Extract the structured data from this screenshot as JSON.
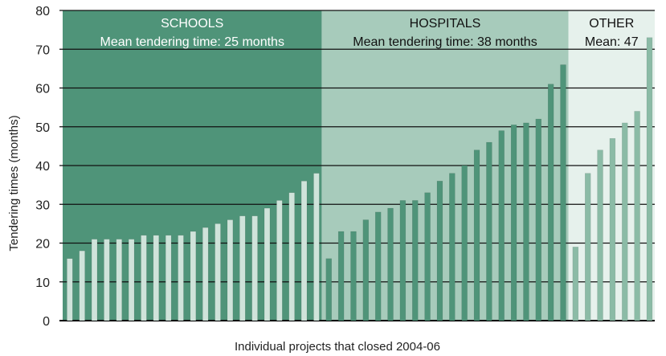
{
  "chart_data": {
    "type": "bar",
    "ylabel": "Tendering times (months)",
    "xlabel": "Individual projects that closed 2004-06",
    "ylim": [
      0,
      80
    ],
    "yticks": [
      0,
      10,
      20,
      30,
      40,
      50,
      60,
      70,
      80
    ],
    "grid": true,
    "groups": [
      {
        "name": "SCHOOLS",
        "subtitle": "Mean tendering time: 25 months",
        "bg": "#4f9479",
        "bar": "#cfe3da",
        "values": [
          16,
          18,
          21,
          21,
          21,
          21,
          22,
          22,
          22,
          22,
          23,
          24,
          25,
          26,
          27,
          27,
          29,
          31,
          33,
          36,
          38
        ]
      },
      {
        "name": "HOSPITALS",
        "subtitle": "Mean tendering time: 38 months",
        "bg": "#a7cbbb",
        "bar": "#4f9479",
        "values": [
          16,
          23,
          23,
          26,
          28,
          29,
          31,
          31,
          33,
          36,
          38,
          40,
          44,
          46,
          49,
          50.5,
          51,
          52,
          61,
          66
        ]
      },
      {
        "name": "OTHER",
        "subtitle": "Mean: 47",
        "bg": "#e6f1ec",
        "bar": "#8bbba6",
        "values": [
          19,
          38,
          44,
          47,
          51,
          54,
          73
        ]
      }
    ]
  }
}
